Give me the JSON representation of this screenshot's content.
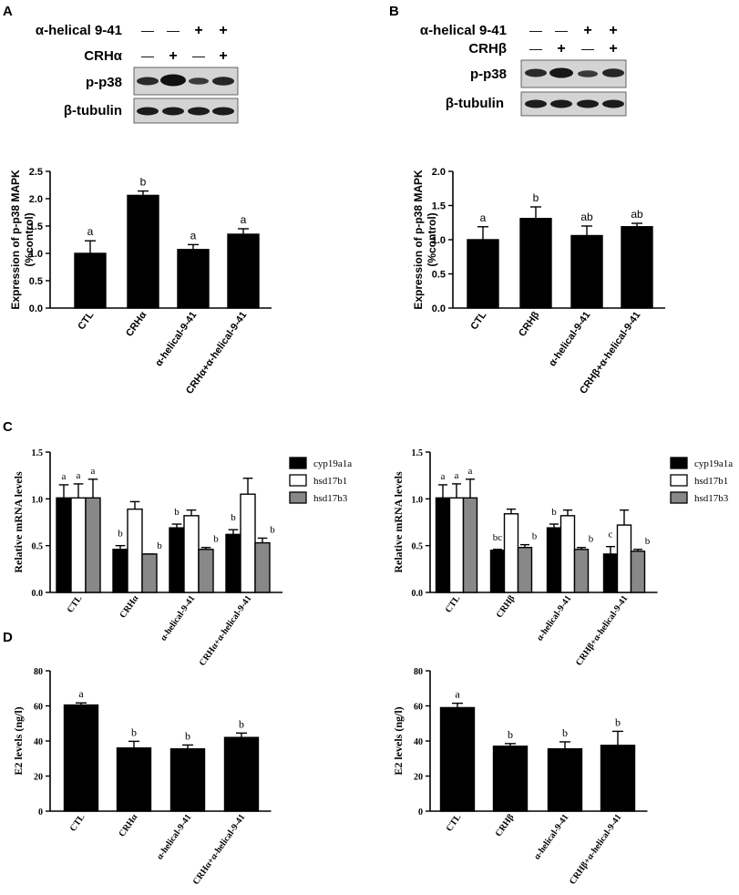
{
  "panel_labels": {
    "a": "A",
    "b": "B",
    "c": "C",
    "d": "D"
  },
  "blots": [
    {
      "rows": [
        {
          "label": "α-helical 9-41",
          "signs": [
            "—",
            "—",
            "+",
            "+"
          ]
        },
        {
          "label": "CRHα",
          "signs": [
            "—",
            "+",
            "—",
            "+"
          ]
        }
      ],
      "bands": [
        "p-p38",
        "β-tubulin"
      ]
    },
    {
      "rows": [
        {
          "label": "α-helical 9-41",
          "signs": [
            "—",
            "—",
            "+",
            "+"
          ]
        },
        {
          "label": "CRHβ",
          "signs": [
            "—",
            "+",
            "—",
            "+"
          ]
        }
      ],
      "bands": [
        "p-p38",
        "β-tubulin"
      ]
    }
  ],
  "chart_data": [
    {
      "id": "A",
      "type": "bar",
      "ylabel": "Expression of p-p38 MAPK\n(%control)",
      "categories": [
        "CTL",
        "CRHα",
        "α-helical-9-41",
        "CRHα+α-helical-9-41"
      ],
      "series": [
        {
          "values": [
            1.0,
            2.06,
            1.07,
            1.35
          ],
          "errors": [
            0.23,
            0.08,
            0.09,
            0.1
          ],
          "color": "#000000"
        }
      ],
      "letters": [
        "a",
        "b",
        "a",
        "a"
      ],
      "ylim": [
        0,
        2.5
      ],
      "yticks": [
        "0.0",
        "0.5",
        "1.0",
        "1.5",
        "2.0",
        "2.5"
      ]
    },
    {
      "id": "B",
      "type": "bar",
      "ylabel": "Expression of p-p38 MAPK\n(%control)",
      "categories": [
        "CTL",
        "CRHβ",
        "α-helical-9-41",
        "CRHβ+α-helical-9-41"
      ],
      "series": [
        {
          "values": [
            1.0,
            1.31,
            1.06,
            1.19
          ],
          "errors": [
            0.19,
            0.17,
            0.14,
            0.05
          ],
          "color": "#000000"
        }
      ],
      "letters": [
        "a",
        "b",
        "ab",
        "ab"
      ],
      "ylim": [
        0,
        2.0
      ],
      "yticks": [
        "0.0",
        "0.5",
        "1.0",
        "1.5",
        "2.0"
      ]
    },
    {
      "id": "C-left",
      "type": "bar",
      "ylabel": "Relative mRNA levels",
      "categories": [
        "CTL",
        "CRHα",
        "α-helical-9-41",
        "CRHα+α-helical-9-41"
      ],
      "series": [
        {
          "name": "cyp19a1a",
          "color": "#000000",
          "values": [
            1.01,
            0.46,
            0.69,
            0.62
          ],
          "errors": [
            0.14,
            0.04,
            0.04,
            0.05
          ],
          "letters": [
            "a",
            "b",
            "b",
            "b"
          ]
        },
        {
          "name": "hsd17b1",
          "color": "#ffffff",
          "values": [
            1.01,
            0.89,
            0.82,
            1.05
          ],
          "errors": [
            0.15,
            0.08,
            0.06,
            0.17
          ],
          "letters": [
            "a",
            "",
            "",
            ""
          ]
        },
        {
          "name": "hsd17b3",
          "color": "#888888",
          "values": [
            1.01,
            0.41,
            0.46,
            0.53
          ],
          "errors": [
            0.2,
            0.0,
            0.02,
            0.05
          ],
          "letters": [
            "a",
            "b",
            "b",
            "b"
          ]
        }
      ],
      "ylim": [
        0,
        1.5
      ],
      "yticks": [
        "0.0",
        "0.5",
        "1.0",
        "1.5"
      ],
      "legend_position": "right"
    },
    {
      "id": "C-right",
      "type": "bar",
      "ylabel": "Relative mRNA levels",
      "categories": [
        "CTL",
        "CRHβ",
        "α-helical-9-41",
        "CRHβ+α-helical-9-41"
      ],
      "series": [
        {
          "name": "cyp19a1a",
          "color": "#000000",
          "values": [
            1.01,
            0.45,
            0.69,
            0.41
          ],
          "errors": [
            0.14,
            0.01,
            0.04,
            0.08
          ],
          "letters": [
            "a",
            "bc",
            "b",
            "c"
          ]
        },
        {
          "name": "hsd17b1",
          "color": "#ffffff",
          "values": [
            1.01,
            0.84,
            0.82,
            0.72
          ],
          "errors": [
            0.15,
            0.05,
            0.06,
            0.16
          ],
          "letters": [
            "a",
            "",
            "",
            ""
          ]
        },
        {
          "name": "hsd17b3",
          "color": "#888888",
          "values": [
            1.01,
            0.48,
            0.46,
            0.44
          ],
          "errors": [
            0.2,
            0.03,
            0.02,
            0.02
          ],
          "letters": [
            "a",
            "b",
            "b",
            "b"
          ]
        }
      ],
      "ylim": [
        0,
        1.5
      ],
      "yticks": [
        "0.0",
        "0.5",
        "1.0",
        "1.5"
      ],
      "legend_position": "right"
    },
    {
      "id": "D-left",
      "type": "bar",
      "ylabel": "E2 levels (ng/l)",
      "categories": [
        "CTL",
        "CRHα",
        "α-helical-9-41",
        "CRHα+α-helical-9-41"
      ],
      "series": [
        {
          "values": [
            60.5,
            36,
            35.5,
            42
          ],
          "errors": [
            1.2,
            3.8,
            2.2,
            2.5
          ],
          "color": "#000000"
        }
      ],
      "letters": [
        "a",
        "b",
        "b",
        "b"
      ],
      "ylim": [
        0,
        80
      ],
      "yticks": [
        "0",
        "20",
        "40",
        "60",
        "80"
      ]
    },
    {
      "id": "D-right",
      "type": "bar",
      "ylabel": "E2 levels (ng/l)",
      "categories": [
        "CTL",
        "CRHβ",
        "α-helical-9-41",
        "CRHβ+α-helical-9-41"
      ],
      "series": [
        {
          "values": [
            59,
            37,
            35.5,
            37.5
          ],
          "errors": [
            2.5,
            1.5,
            4,
            8
          ],
          "color": "#000000"
        }
      ],
      "letters": [
        "a",
        "b",
        "b",
        "b"
      ],
      "ylim": [
        0,
        80
      ],
      "yticks": [
        "0",
        "20",
        "40",
        "60",
        "80"
      ]
    }
  ]
}
